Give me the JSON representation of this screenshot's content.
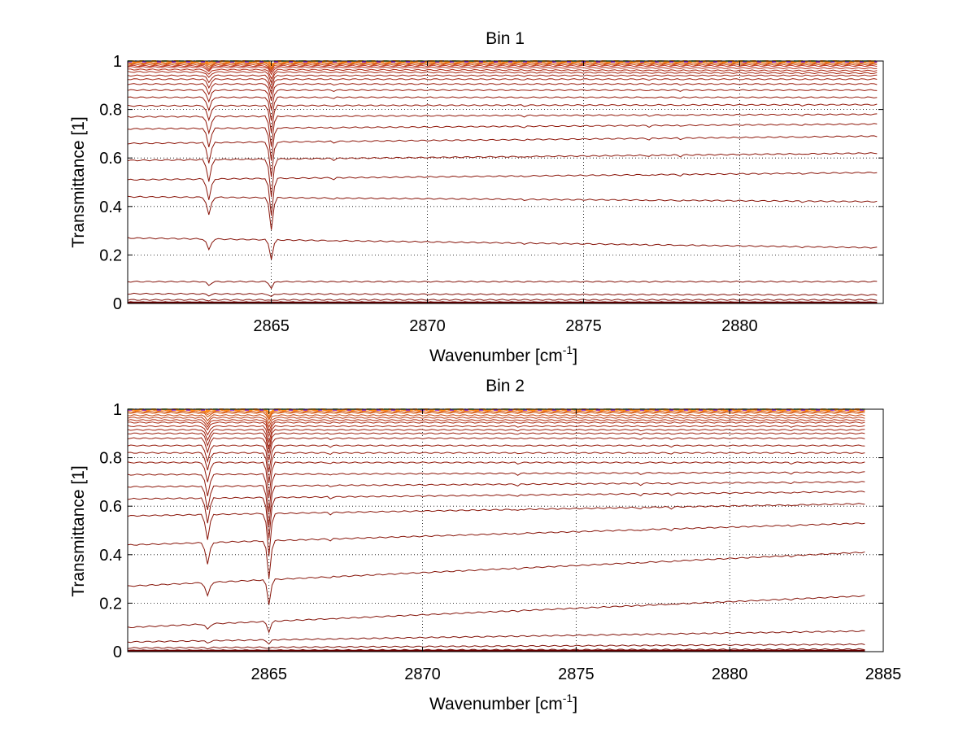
{
  "figure": {
    "background": "#ffffff"
  },
  "chart_data": [
    {
      "type": "line",
      "title": "Bin 1",
      "xlabel": "Wavenumber [cm",
      "xlabel_superscript": "-1",
      "xlabel_suffix": "]",
      "ylabel": "Transmittance [1]",
      "xlim": [
        2860.4,
        2884.6
      ],
      "ylim": [
        0,
        1
      ],
      "xticks": [
        2865,
        2870,
        2875,
        2880
      ],
      "xtick_labels": [
        "2865",
        "2870",
        "2875",
        "2880"
      ],
      "yticks": [
        0,
        0.2,
        0.4,
        0.6,
        0.8,
        1
      ],
      "ytick_labels": [
        "0",
        "0.2",
        "0.4",
        "0.6",
        "0.8",
        "1"
      ],
      "grid": true,
      "grid_style": "dotted",
      "x_start": 2860.4,
      "x_end": 2884.4,
      "absorption_lines": [
        {
          "center": 2863.0,
          "relative_depth": 0.17,
          "width": 0.09
        },
        {
          "center": 2865.0,
          "relative_depth": 0.3,
          "width": 0.08
        },
        {
          "center": 2867.0,
          "relative_depth": 0.012,
          "width": 0.05
        },
        {
          "center": 2873.1,
          "relative_depth": 0.01,
          "width": 0.06
        },
        {
          "center": 2877.1,
          "relative_depth": 0.01,
          "width": 0.06
        },
        {
          "center": 2878.1,
          "relative_depth": 0.01,
          "width": 0.06
        },
        {
          "center": 2882.0,
          "relative_depth": 0.008,
          "width": 0.06
        }
      ],
      "series_levels_start": [
        1.0,
        0.997,
        0.993,
        0.99,
        0.985,
        0.98,
        0.975,
        0.965,
        0.955,
        0.94,
        0.925,
        0.905,
        0.88,
        0.85,
        0.815,
        0.77,
        0.72,
        0.66,
        0.59,
        0.51,
        0.44,
        0.27,
        0.09,
        0.04,
        0.015,
        0.005
      ],
      "series_levels_end": [
        1.0,
        0.998,
        0.995,
        0.99,
        0.985,
        0.98,
        0.97,
        0.96,
        0.95,
        0.94,
        0.925,
        0.905,
        0.88,
        0.85,
        0.82,
        0.78,
        0.74,
        0.69,
        0.62,
        0.54,
        0.42,
        0.23,
        0.09,
        0.035,
        0.015,
        0.005
      ],
      "series_colors": [
        "#ff8c1a",
        "#f57a12",
        "#e86a10",
        "#d4570e",
        "#c9470c",
        "#c0392b",
        "#b83018",
        "#b02a14",
        "#a82612",
        "#a02210",
        "#a0200e",
        "#9c1e0e",
        "#981c0c",
        "#961b0c",
        "#941a0c",
        "#92190b",
        "#90180b",
        "#8e170b",
        "#8c160a",
        "#8a150a",
        "#881409",
        "#861309",
        "#841209",
        "#821108",
        "#801008",
        "#7a0e08"
      ],
      "top_band_colors": [
        "#4a90d9",
        "#ff8c1a",
        "#d9c21a",
        "#8a2be2",
        "#3cb371"
      ]
    },
    {
      "type": "line",
      "title": "Bin 2",
      "xlabel": "Wavenumber [cm",
      "xlabel_superscript": "-1",
      "xlabel_suffix": "]",
      "ylabel": "Transmittance [1]",
      "xlim": [
        2860.4,
        2885.0
      ],
      "ylim": [
        0,
        1
      ],
      "xticks": [
        2865,
        2870,
        2875,
        2880,
        2885
      ],
      "xtick_labels": [
        "2865",
        "2870",
        "2875",
        "2880",
        "2885"
      ],
      "yticks": [
        0,
        0.2,
        0.4,
        0.6,
        0.8,
        1
      ],
      "ytick_labels": [
        "0",
        "0.2",
        "0.4",
        "0.6",
        "0.8",
        "1"
      ],
      "grid": true,
      "grid_style": "dotted",
      "x_start": 2860.4,
      "x_end": 2884.4,
      "absorption_lines": [
        {
          "center": 2863.0,
          "relative_depth": 0.2,
          "width": 0.09
        },
        {
          "center": 2865.0,
          "relative_depth": 0.34,
          "width": 0.08
        },
        {
          "center": 2867.0,
          "relative_depth": 0.014,
          "width": 0.05
        },
        {
          "center": 2873.1,
          "relative_depth": 0.012,
          "width": 0.06
        },
        {
          "center": 2877.1,
          "relative_depth": 0.012,
          "width": 0.06
        },
        {
          "center": 2878.1,
          "relative_depth": 0.012,
          "width": 0.06
        },
        {
          "center": 2882.0,
          "relative_depth": 0.01,
          "width": 0.06
        }
      ],
      "series_levels_start": [
        1.0,
        0.995,
        0.99,
        0.985,
        0.975,
        0.965,
        0.955,
        0.945,
        0.93,
        0.915,
        0.9,
        0.88,
        0.85,
        0.82,
        0.78,
        0.73,
        0.68,
        0.63,
        0.56,
        0.44,
        0.27,
        0.1,
        0.04,
        0.015,
        0.005
      ],
      "series_levels_end": [
        1.0,
        0.995,
        0.99,
        0.985,
        0.975,
        0.965,
        0.955,
        0.945,
        0.93,
        0.915,
        0.9,
        0.88,
        0.85,
        0.82,
        0.78,
        0.74,
        0.7,
        0.66,
        0.61,
        0.53,
        0.41,
        0.23,
        0.085,
        0.03,
        0.01
      ],
      "series_colors": [
        "#ff8c1a",
        "#f07010",
        "#e0600f",
        "#d0520e",
        "#c4440c",
        "#bc3a14",
        "#b43012",
        "#ac2a12",
        "#a62610",
        "#a0220f",
        "#9c200e",
        "#981e0e",
        "#961c0d",
        "#941b0c",
        "#921a0c",
        "#90190b",
        "#8e180b",
        "#8c170b",
        "#8a160a",
        "#88150a",
        "#861409",
        "#841309",
        "#821209",
        "#801108",
        "#7a0e08"
      ],
      "top_band_colors": [
        "#4a90d9",
        "#ff8c1a",
        "#d9c21a",
        "#8a2be2",
        "#3cb371"
      ]
    }
  ]
}
